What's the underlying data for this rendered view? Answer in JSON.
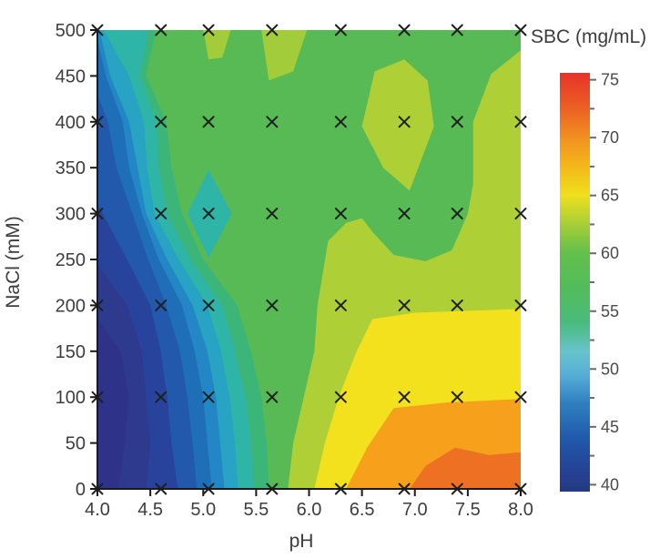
{
  "chart_data": {
    "type": "filled_contour",
    "title": "",
    "xlabel": "pH",
    "ylabel": "NaCl (mM)",
    "colorbar_label": "SBC (mg/mL)",
    "x_range": [
      4.0,
      8.0
    ],
    "y_range": [
      0,
      500
    ],
    "grid": false,
    "x_ticks": [
      {
        "v": 4.0,
        "l": "4.0"
      },
      {
        "v": 4.5,
        "l": "4.5"
      },
      {
        "v": 5.0,
        "l": "5.0"
      },
      {
        "v": 5.5,
        "l": "5.5"
      },
      {
        "v": 6.0,
        "l": "6.0"
      },
      {
        "v": 6.5,
        "l": "6.5"
      },
      {
        "v": 7.0,
        "l": "7.0"
      },
      {
        "v": 7.5,
        "l": "7.5"
      },
      {
        "v": 8.0,
        "l": "8.0"
      }
    ],
    "y_ticks": [
      {
        "v": 0,
        "l": "0"
      },
      {
        "v": 50,
        "l": "50"
      },
      {
        "v": 100,
        "l": "100"
      },
      {
        "v": 150,
        "l": "150"
      },
      {
        "v": 200,
        "l": "200"
      },
      {
        "v": 250,
        "l": "250"
      },
      {
        "v": 300,
        "l": "300"
      },
      {
        "v": 350,
        "l": "350"
      },
      {
        "v": 400,
        "l": "400"
      },
      {
        "v": 450,
        "l": "450"
      },
      {
        "v": 500,
        "l": "500"
      }
    ],
    "colorbar": {
      "value_min": 39.4,
      "value_max": 75.6,
      "tick_step": 2.5,
      "major_tick_values": [
        40,
        45,
        50,
        55,
        60,
        65,
        70,
        75
      ],
      "gradient_stops": [
        {
          "pos": 0.0,
          "color": "#243a80"
        },
        {
          "pos": 0.04,
          "color": "#263f92"
        },
        {
          "pos": 0.127,
          "color": "#2159ab"
        },
        {
          "pos": 0.21,
          "color": "#2f7fc0"
        },
        {
          "pos": 0.279,
          "color": "#56aed7"
        },
        {
          "pos": 0.334,
          "color": "#67c3cb"
        },
        {
          "pos": 0.403,
          "color": "#4abb7d"
        },
        {
          "pos": 0.486,
          "color": "#52bc5b"
        },
        {
          "pos": 0.569,
          "color": "#62c04c"
        },
        {
          "pos": 0.638,
          "color": "#a6ce37"
        },
        {
          "pos": 0.707,
          "color": "#eee01f"
        },
        {
          "pos": 0.776,
          "color": "#f4b818"
        },
        {
          "pos": 0.845,
          "color": "#f19021"
        },
        {
          "pos": 0.914,
          "color": "#ec6124"
        },
        {
          "pos": 1.0,
          "color": "#e73229"
        }
      ]
    },
    "design_points": {
      "ph": [
        4.0,
        4.6,
        5.05,
        5.65,
        6.3,
        6.9,
        7.4,
        8.0
      ],
      "nacl": [
        0,
        100,
        200,
        300,
        400,
        500
      ],
      "marker": "x",
      "marker_color": "#1f1f1f"
    },
    "sbc_estimated_at_points": [
      {
        "nacl": 0,
        "values_by_ph": [
          39,
          41,
          47,
          56,
          66,
          69,
          71,
          72
        ]
      },
      {
        "nacl": 100,
        "values_by_ph": [
          39,
          41,
          48,
          56,
          64,
          65,
          66,
          67
        ]
      },
      {
        "nacl": 200,
        "values_by_ph": [
          40,
          43,
          53,
          58,
          62,
          62,
          63,
          63
        ]
      },
      {
        "nacl": 300,
        "values_by_ph": [
          43,
          56,
          54,
          58,
          60,
          61,
          62,
          62
        ]
      },
      {
        "nacl": 400,
        "values_by_ph": [
          46,
          57,
          58,
          59,
          60,
          62,
          61,
          62
        ]
      },
      {
        "nacl": 500,
        "values_by_ph": [
          53,
          58,
          61,
          61,
          59,
          60,
          60,
          61
        ]
      }
    ],
    "bands": [
      {
        "name": "green-body",
        "level": "57.5-60",
        "color": "#57ba55",
        "points": [
          [
            4,
            500
          ],
          [
            8,
            500
          ],
          [
            8,
            0
          ],
          [
            4,
            0
          ]
        ]
      },
      {
        "name": "teal-green-band",
        "level": "55-57.5",
        "color": "#3bb678",
        "points": [
          [
            4,
            500
          ],
          [
            4.55,
            500
          ],
          [
            4.46,
            450
          ],
          [
            4.65,
            400
          ],
          [
            4.7,
            350
          ],
          [
            4.8,
            300
          ],
          [
            5.0,
            250
          ],
          [
            5.32,
            200
          ],
          [
            5.45,
            150
          ],
          [
            5.55,
            100
          ],
          [
            5.6,
            50
          ],
          [
            5.62,
            0
          ],
          [
            4,
            0
          ]
        ]
      },
      {
        "name": "turquoise-band",
        "level": "52.5-55",
        "color": "#2fb5a8",
        "points": [
          [
            4,
            500
          ],
          [
            4.48,
            500
          ],
          [
            4.4,
            450
          ],
          [
            4.56,
            400
          ],
          [
            4.58,
            350
          ],
          [
            4.66,
            300
          ],
          [
            4.88,
            250
          ],
          [
            5.18,
            200
          ],
          [
            5.3,
            150
          ],
          [
            5.4,
            100
          ],
          [
            5.45,
            50
          ],
          [
            5.48,
            0
          ],
          [
            4,
            0
          ]
        ]
      },
      {
        "name": "cyan-band",
        "level": "50-52.5",
        "color": "#28a3c3",
        "points": [
          [
            4,
            500
          ],
          [
            4.06,
            500
          ],
          [
            4.3,
            450
          ],
          [
            4.44,
            400
          ],
          [
            4.47,
            350
          ],
          [
            4.54,
            300
          ],
          [
            4.77,
            250
          ],
          [
            5.04,
            200
          ],
          [
            5.17,
            150
          ],
          [
            5.25,
            100
          ],
          [
            5.3,
            50
          ],
          [
            5.33,
            0
          ],
          [
            4,
            0
          ]
        ]
      },
      {
        "name": "light-blue-band",
        "level": "47.5-50",
        "color": "#2387c6",
        "points": [
          [
            4,
            500
          ],
          [
            4.02,
            500
          ],
          [
            4.12,
            450
          ],
          [
            4.3,
            400
          ],
          [
            4.38,
            350
          ],
          [
            4.46,
            300
          ],
          [
            4.66,
            250
          ],
          [
            4.9,
            200
          ],
          [
            5.04,
            150
          ],
          [
            5.12,
            100
          ],
          [
            5.16,
            50
          ],
          [
            5.2,
            0
          ],
          [
            4,
            0
          ]
        ]
      },
      {
        "name": "blue-band",
        "level": "45-47.5",
        "color": "#1e6eb8",
        "points": [
          [
            4,
            490
          ],
          [
            4.08,
            450
          ],
          [
            4.24,
            400
          ],
          [
            4.3,
            350
          ],
          [
            4.42,
            300
          ],
          [
            4.58,
            250
          ],
          [
            4.8,
            200
          ],
          [
            4.92,
            150
          ],
          [
            5.0,
            100
          ],
          [
            5.04,
            50
          ],
          [
            5.08,
            0
          ],
          [
            4,
            0
          ]
        ]
      },
      {
        "name": "medium-blue-band",
        "level": "42.5-45",
        "color": "#2259ac",
        "points": [
          [
            4,
            430
          ],
          [
            4.1,
            400
          ],
          [
            4.18,
            350
          ],
          [
            4.33,
            300
          ],
          [
            4.48,
            250
          ],
          [
            4.65,
            200
          ],
          [
            4.78,
            150
          ],
          [
            4.85,
            100
          ],
          [
            4.9,
            50
          ],
          [
            4.94,
            0
          ],
          [
            4,
            0
          ]
        ]
      },
      {
        "name": "navy-band",
        "level": "40-42.5",
        "color": "#28439c",
        "points": [
          [
            4,
            310
          ],
          [
            4.05,
            300
          ],
          [
            4.28,
            250
          ],
          [
            4.5,
            200
          ],
          [
            4.6,
            150
          ],
          [
            4.66,
            100
          ],
          [
            4.7,
            50
          ],
          [
            4.76,
            0
          ],
          [
            4,
            0
          ]
        ]
      },
      {
        "name": "dark-navy-band",
        "level": "<40",
        "color": "#2d3a8e",
        "points": [
          [
            4,
            245
          ],
          [
            4.28,
            200
          ],
          [
            4.42,
            150
          ],
          [
            4.46,
            100
          ],
          [
            4.5,
            50
          ],
          [
            4.46,
            0
          ],
          [
            4,
            0
          ]
        ]
      },
      {
        "name": "darkest-navy-core",
        "level": "<39",
        "color": "#2e3389",
        "points": [
          [
            4,
            185
          ],
          [
            4.22,
            150
          ],
          [
            4.3,
            100
          ],
          [
            4.26,
            50
          ],
          [
            4.2,
            0
          ],
          [
            4,
            0
          ]
        ]
      },
      {
        "name": "turquoise-diamond",
        "level": "52.5-55",
        "color": "#2fb5a8",
        "points": [
          [
            4.85,
            300
          ],
          [
            5.05,
            348
          ],
          [
            5.27,
            300
          ],
          [
            5.05,
            252
          ]
        ]
      },
      {
        "name": "yellow-green-top-notch",
        "level": "60-62.5",
        "color": "#a2cc3a",
        "points": [
          [
            5.0,
            500
          ],
          [
            5.26,
            500
          ],
          [
            5.18,
            470
          ],
          [
            5.05,
            468
          ]
        ]
      },
      {
        "name": "yellow-green-top-wedge",
        "level": "60-62.5",
        "color": "#a2cc3a",
        "points": [
          [
            5.55,
            500
          ],
          [
            5.98,
            500
          ],
          [
            5.85,
            455
          ],
          [
            5.62,
            445
          ]
        ]
      },
      {
        "name": "yellow-green-region",
        "level": "60-62.5",
        "color": "#aed036",
        "points": [
          [
            5.8,
            0
          ],
          [
            5.85,
            50
          ],
          [
            5.95,
            100
          ],
          [
            6.05,
            150
          ],
          [
            6.08,
            200
          ],
          [
            6.18,
            270
          ],
          [
            6.35,
            290
          ],
          [
            6.5,
            295
          ],
          [
            6.6,
            280
          ],
          [
            6.8,
            255
          ],
          [
            7.1,
            248
          ],
          [
            7.35,
            260
          ],
          [
            7.5,
            300
          ],
          [
            7.55,
            332
          ],
          [
            7.55,
            400
          ],
          [
            7.72,
            452
          ],
          [
            8.0,
            478
          ],
          [
            8.0,
            0
          ]
        ]
      },
      {
        "name": "yellow-green-blob",
        "level": "60-62.5",
        "color": "#aed036",
        "points": [
          [
            6.5,
            395
          ],
          [
            6.62,
            455
          ],
          [
            6.9,
            468
          ],
          [
            7.12,
            445
          ],
          [
            7.18,
            395
          ],
          [
            6.95,
            325
          ],
          [
            6.7,
            350
          ]
        ]
      },
      {
        "name": "yellow-region",
        "level": "62.5-65",
        "color": "#f3e11e",
        "points": [
          [
            6.05,
            0
          ],
          [
            6.15,
            50
          ],
          [
            6.28,
            100
          ],
          [
            6.45,
            150
          ],
          [
            6.6,
            185
          ],
          [
            7.0,
            192
          ],
          [
            8.0,
            196
          ],
          [
            8.0,
            98
          ],
          [
            7.3,
            94
          ],
          [
            6.8,
            88
          ],
          [
            6.55,
            45
          ],
          [
            6.35,
            0
          ]
        ]
      },
      {
        "name": "orange-region",
        "level": "65-70",
        "color": "#f6a01c",
        "points": [
          [
            6.35,
            0
          ],
          [
            6.55,
            45
          ],
          [
            6.8,
            88
          ],
          [
            7.3,
            94
          ],
          [
            8.0,
            98
          ],
          [
            8.0,
            40
          ],
          [
            7.7,
            37
          ],
          [
            7.38,
            45
          ],
          [
            7.1,
            25
          ],
          [
            6.95,
            0
          ]
        ]
      },
      {
        "name": "dark-orange-region",
        "level": "70-72.5",
        "color": "#ee7123",
        "points": [
          [
            6.95,
            0
          ],
          [
            7.1,
            25
          ],
          [
            7.38,
            45
          ],
          [
            7.7,
            37
          ],
          [
            8.0,
            40
          ],
          [
            8.0,
            0
          ]
        ]
      }
    ],
    "axis_color": "#1a1a1a",
    "tick_label_color": "#3d3d3d",
    "colorbar_tick_label_color": "#4a4a4a"
  }
}
